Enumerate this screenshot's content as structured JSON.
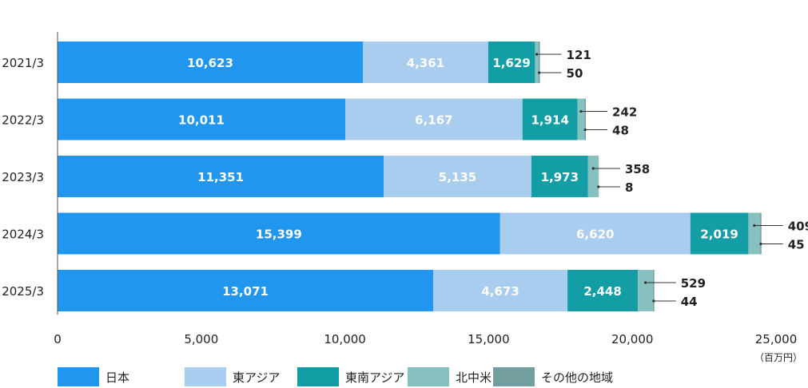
{
  "chart_data": {
    "type": "bar",
    "orientation": "horizontal",
    "stacked": true,
    "categories": [
      "2021/3",
      "2022/3",
      "2023/3",
      "2024/3",
      "2025/3"
    ],
    "series": [
      {
        "name": "日本",
        "color": "#2196ee",
        "values": [
          10623,
          10011,
          11351,
          15399,
          13071
        ],
        "labels": [
          "10,623",
          "10,011",
          "11,351",
          "15,399",
          "13,071"
        ]
      },
      {
        "name": "東アジア",
        "color": "#a9cdee",
        "values": [
          4361,
          6167,
          5135,
          6620,
          4673
        ],
        "labels": [
          "4,361",
          "6,167",
          "5,135",
          "6,620",
          "4,673"
        ]
      },
      {
        "name": "東南アジア",
        "color": "#139ea6",
        "values": [
          1629,
          1914,
          1973,
          2019,
          2448
        ],
        "labels": [
          "1,629",
          "1,914",
          "1,973",
          "2,019",
          "2,448"
        ]
      },
      {
        "name": "北中米",
        "color": "#86c0bf",
        "values": [
          121,
          242,
          358,
          409,
          529
        ],
        "labels": [
          "121",
          "242",
          "358",
          "409",
          "529"
        ]
      },
      {
        "name": "その他の地域",
        "color": "#729e9f",
        "values": [
          50,
          48,
          8,
          45,
          44
        ],
        "labels": [
          "50",
          "48",
          "8",
          "45",
          "44"
        ]
      }
    ],
    "xlim": [
      0,
      25000
    ],
    "xticks": [
      0,
      5000,
      10000,
      15000,
      20000,
      25000
    ],
    "xtick_labels": [
      "0",
      "5,000",
      "10,000",
      "15,000",
      "20,000",
      "25,000"
    ],
    "unit_label": "（百万円）",
    "legend_position": "bottom-left",
    "grid": false
  }
}
